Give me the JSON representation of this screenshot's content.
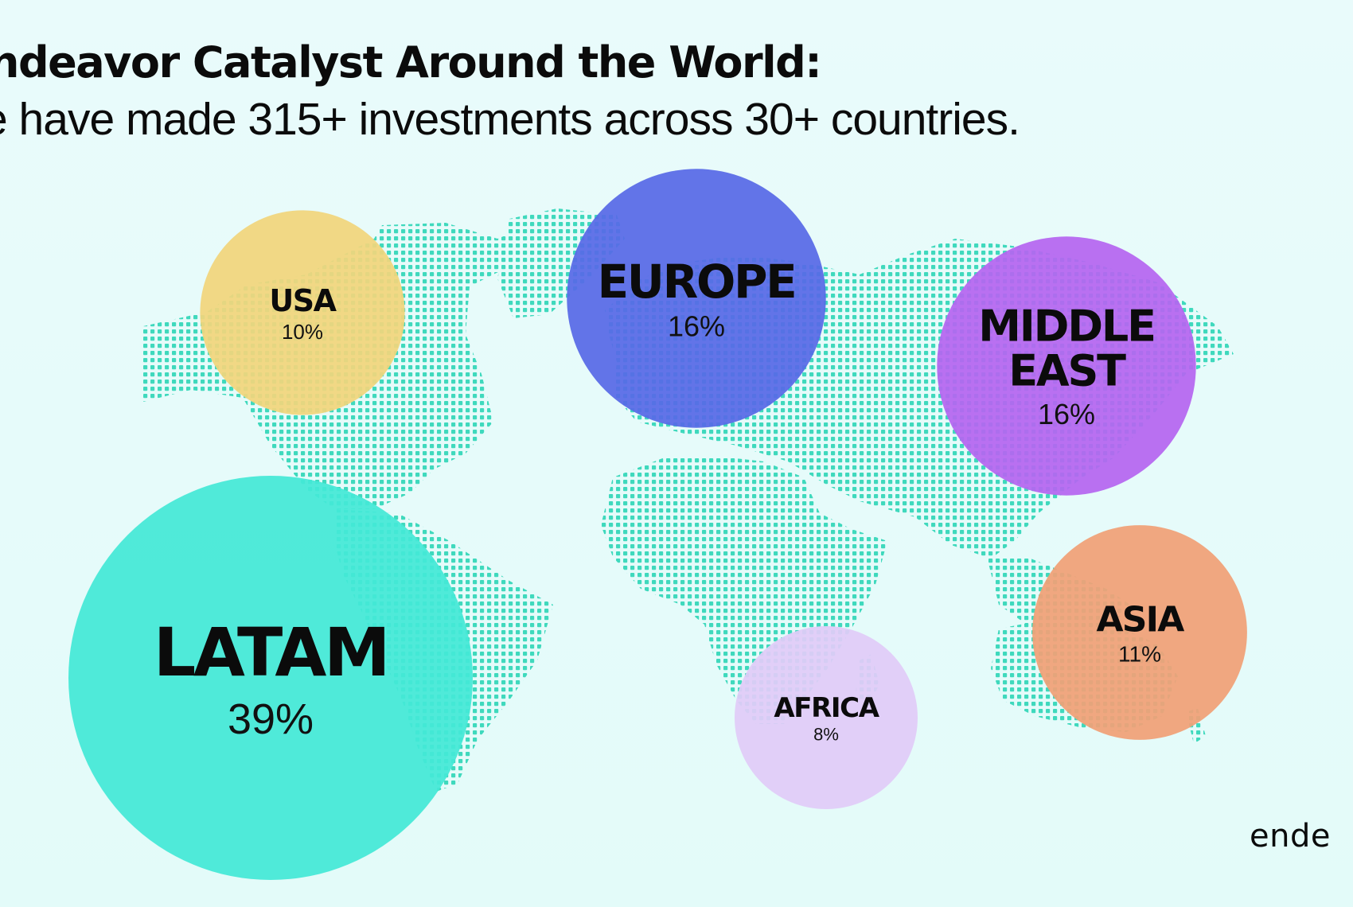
{
  "header": {
    "title": "ndeavor Catalyst Around the World:",
    "subtitle": "e have made 315+ investments across 30+ countries."
  },
  "logo": {
    "text": "ende"
  },
  "colors": {
    "background": "#e6fbfa",
    "map_dots": "#3fd9bd"
  },
  "chart_data": {
    "type": "bubble",
    "title": "ndeavor Catalyst Around the World:",
    "subtitle": "e have made 315+ investments across 30+ countries.",
    "unit": "%",
    "categories": [
      "USA",
      "EUROPE",
      "MIDDLE EAST",
      "LATAM",
      "AFRICA",
      "ASIA"
    ],
    "values": [
      10,
      16,
      16,
      39,
      8,
      11
    ],
    "series": [
      {
        "name": "USA",
        "label_lines": [
          "USA"
        ],
        "value": 10,
        "value_label": "10%",
        "color": "#f1d57c"
      },
      {
        "name": "EUROPE",
        "label_lines": [
          "EUROPE"
        ],
        "value": 16,
        "value_label": "16%",
        "color": "#5769e6"
      },
      {
        "name": "MIDDLE EAST",
        "label_lines": [
          "MIDDLE",
          "EAST"
        ],
        "value": 16,
        "value_label": "16%",
        "color": "#b565f0"
      },
      {
        "name": "LATAM",
        "label_lines": [
          "LATAM"
        ],
        "value": 39,
        "value_label": "39%",
        "color": "#44e8d6"
      },
      {
        "name": "AFRICA",
        "label_lines": [
          "AFRICA"
        ],
        "value": 8,
        "value_label": "8%",
        "color": "#e1cbf7"
      },
      {
        "name": "ASIA",
        "label_lines": [
          "ASIA"
        ],
        "value": 11,
        "value_label": "11%",
        "color": "#f1a076"
      }
    ]
  }
}
